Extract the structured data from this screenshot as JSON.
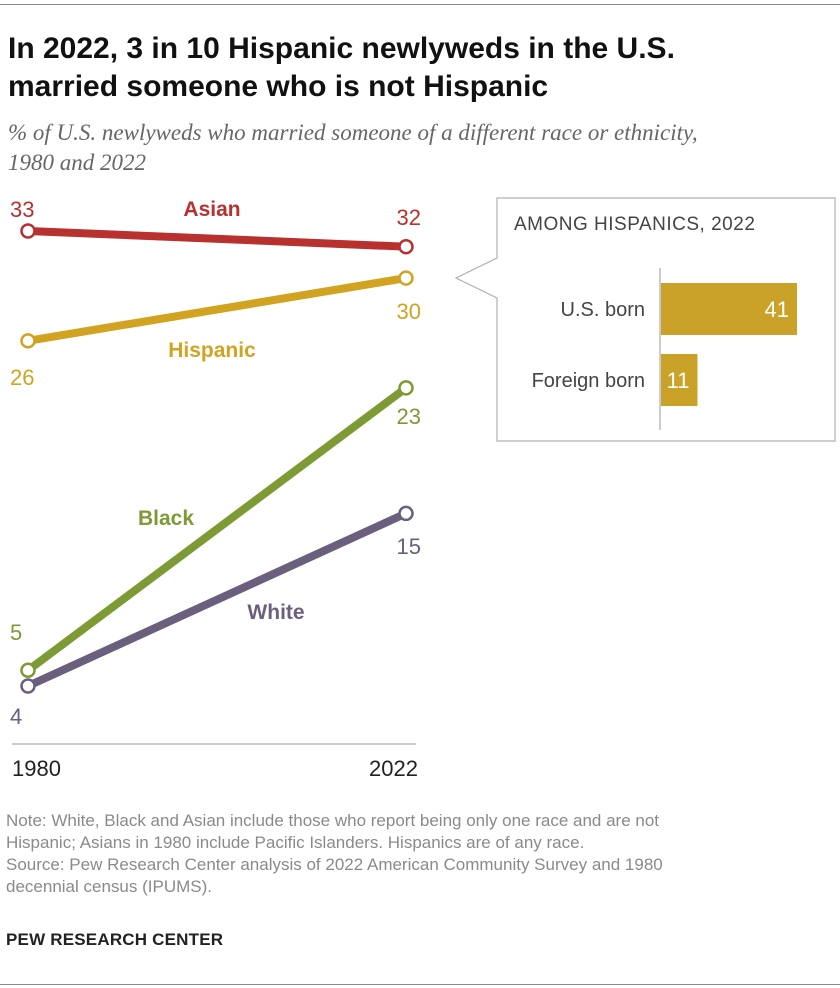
{
  "header": {
    "title_line1": "In 2022, 3 in 10 Hispanic newlyweds in the U.S.",
    "title_line2": "married someone who is not Hispanic",
    "subtitle_line1": "% of U.S. newlyweds who married someone of a different race or ethnicity,",
    "subtitle_line2": "1980 and 2022"
  },
  "colors": {
    "Asian": "#b8312f",
    "Hispanic": "#d1a321",
    "Black": "#7e9a34",
    "White": "#6b5f7e",
    "inset_bar": "#c9a227"
  },
  "chart_data": [
    {
      "type": "line",
      "x": [
        "1980",
        "2022"
      ],
      "ylim": [
        4,
        33
      ],
      "series": [
        {
          "name": "Asian",
          "values": [
            33,
            32
          ]
        },
        {
          "name": "Hispanic",
          "values": [
            26,
            30
          ]
        },
        {
          "name": "Black",
          "values": [
            5,
            23
          ]
        },
        {
          "name": "White",
          "values": [
            4,
            15
          ]
        }
      ]
    },
    {
      "type": "bar",
      "title": "AMONG HISPANICS, 2022",
      "categories": [
        "U.S. born",
        "Foreign born"
      ],
      "values": [
        41,
        11
      ]
    }
  ],
  "footer": {
    "note_line1": "Note: White, Black and Asian include those who report being only one race and are not",
    "note_line2": "Hispanic; Asians in 1980 include Pacific Islanders. Hispanics are of any race.",
    "source_line1": "Source: Pew Research Center analysis of 2022 American Community Survey and 1980",
    "source_line2": "decennial census (IPUMS).",
    "brand": "PEW RESEARCH CENTER"
  }
}
